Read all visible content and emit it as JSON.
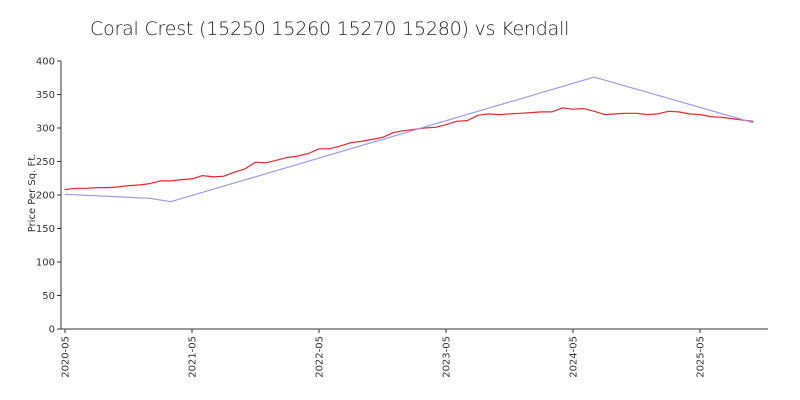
{
  "chart_data": {
    "type": "line",
    "title": "Coral Crest (15250 15260 15270 15280) vs Kendall",
    "xlabel": "",
    "ylabel": "Price Per Sq. Ft.",
    "ylim": [
      0,
      400
    ],
    "yticks": [
      0,
      50,
      100,
      150,
      200,
      250,
      300,
      350,
      400
    ],
    "xticks": [
      "2020-05",
      "2021-05",
      "2022-05",
      "2023-05",
      "2024-05",
      "2025-05"
    ],
    "legend": "none",
    "grid": false,
    "series": [
      {
        "color": "#e8262c",
        "x": [
          "2020-05",
          "2020-06",
          "2020-07",
          "2020-08",
          "2020-09",
          "2020-10",
          "2020-11",
          "2020-12",
          "2021-01",
          "2021-02",
          "2021-03",
          "2021-04",
          "2021-05",
          "2021-06",
          "2021-07",
          "2021-08",
          "2021-09",
          "2021-10",
          "2021-11",
          "2021-12",
          "2022-01",
          "2022-02",
          "2022-03",
          "2022-04",
          "2022-05",
          "2022-06",
          "2022-07",
          "2022-08",
          "2022-09",
          "2022-10",
          "2022-11",
          "2022-12",
          "2023-01",
          "2023-02",
          "2023-03",
          "2023-04",
          "2023-05",
          "2023-06",
          "2023-07",
          "2023-08",
          "2023-09",
          "2023-10",
          "2023-11",
          "2023-12",
          "2024-01",
          "2024-02",
          "2024-03",
          "2024-04",
          "2024-05",
          "2024-06",
          "2024-07",
          "2024-08",
          "2024-09",
          "2024-10",
          "2024-11",
          "2024-12",
          "2025-01",
          "2025-02",
          "2025-03",
          "2025-04",
          "2025-05",
          "2025-06",
          "2025-07",
          "2025-08",
          "2025-09",
          "2025-10"
        ],
        "values": [
          208,
          210,
          210,
          211,
          211,
          212,
          214,
          215,
          217,
          221,
          221,
          223,
          224,
          229,
          227,
          228,
          234,
          239,
          249,
          248,
          252,
          256,
          258,
          262,
          269,
          269,
          273,
          278,
          280,
          283,
          286,
          293,
          296,
          298,
          300,
          301,
          305,
          310,
          311,
          319,
          321,
          320,
          321,
          322,
          323,
          324,
          324,
          330,
          328,
          329,
          325,
          320,
          321,
          322,
          322,
          320,
          321,
          325,
          324,
          321,
          320,
          317,
          316,
          314,
          312,
          310
        ]
      },
      {
        "color": "#9a9af0",
        "x": [
          "2020-05",
          "2021-01",
          "2021-03",
          "2024-07",
          "2025-10"
        ],
        "values": [
          201,
          195,
          190,
          376,
          308
        ]
      }
    ]
  }
}
